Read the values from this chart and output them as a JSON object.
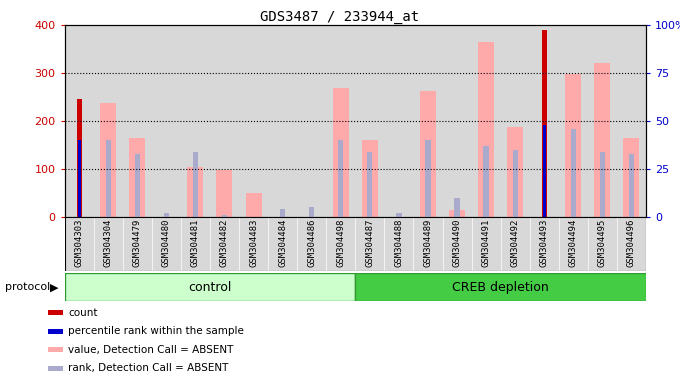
{
  "title": "GDS3487 / 233944_at",
  "samples": [
    "GSM304303",
    "GSM304304",
    "GSM304479",
    "GSM304480",
    "GSM304481",
    "GSM304482",
    "GSM304483",
    "GSM304484",
    "GSM304486",
    "GSM304498",
    "GSM304487",
    "GSM304488",
    "GSM304489",
    "GSM304490",
    "GSM304491",
    "GSM304492",
    "GSM304493",
    "GSM304494",
    "GSM304495",
    "GSM304496"
  ],
  "count_values": [
    245,
    0,
    0,
    0,
    0,
    0,
    0,
    0,
    0,
    0,
    0,
    0,
    0,
    0,
    0,
    0,
    390,
    0,
    0,
    0
  ],
  "rank_values_pct": [
    40,
    0,
    0,
    0,
    0,
    0,
    0,
    0,
    0,
    0,
    0,
    0,
    0,
    0,
    0,
    0,
    48,
    0,
    0,
    0
  ],
  "value_absent": [
    0,
    238,
    165,
    0,
    105,
    98,
    50,
    0,
    0,
    268,
    160,
    0,
    262,
    15,
    365,
    188,
    0,
    298,
    320,
    165
  ],
  "rank_absent_pct": [
    0,
    40,
    33,
    2,
    34,
    1,
    0,
    4,
    5,
    40,
    34,
    2,
    40,
    10,
    37,
    35,
    0,
    46,
    34,
    33
  ],
  "group_control_n": 10,
  "group_creb_n": 10,
  "ylim_left": [
    0,
    400
  ],
  "ylim_right": [
    0,
    100
  ],
  "yticks_left": [
    0,
    100,
    200,
    300,
    400
  ],
  "yticks_right": [
    0,
    25,
    50,
    75,
    100
  ],
  "ytick_labels_right": [
    "0",
    "25",
    "50",
    "75",
    "100%"
  ],
  "color_count": "#cc0000",
  "color_rank": "#0000cc",
  "color_value_absent": "#ffaaaa",
  "color_rank_absent": "#aaaacc",
  "color_col_bg": "#d8d8d8",
  "bg_group_light": "#ccffcc",
  "bg_group_dark": "#44cc44",
  "border_group": "#339933",
  "grid_color": "#000000"
}
